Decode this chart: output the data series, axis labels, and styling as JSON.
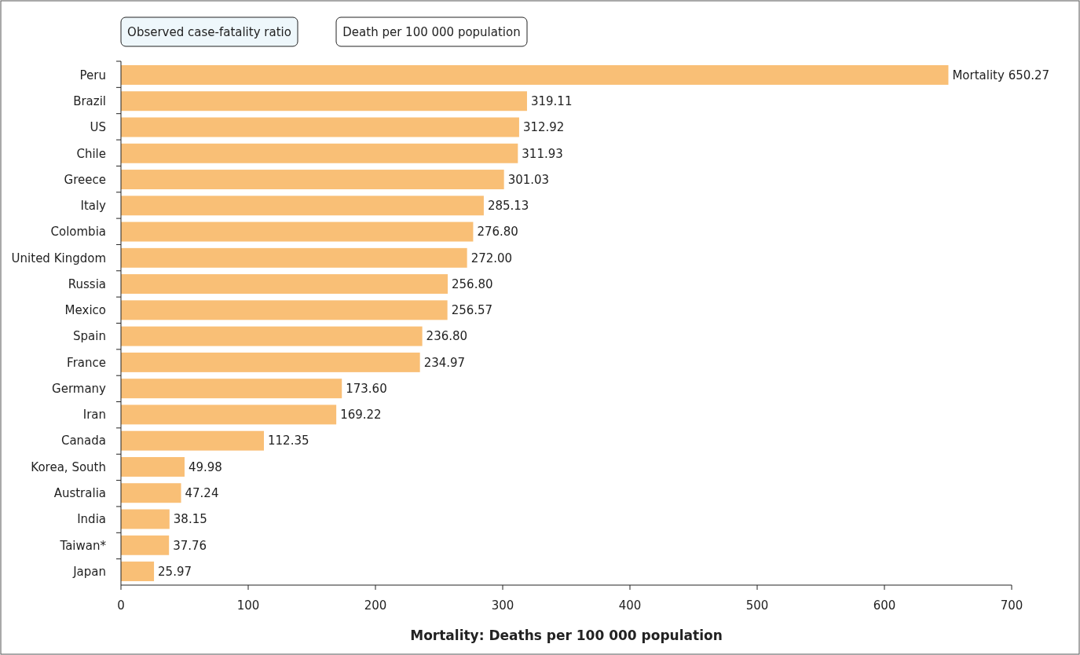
{
  "chart_data": {
    "type": "bar",
    "orientation": "horizontal",
    "xlabel": "Mortality: Deaths per 100 000 population",
    "annotations": [
      "Observed case-fatality ratio",
      "Death per 100 000 population"
    ],
    "categories": [
      "Peru",
      "Brazil",
      "US",
      "Chile",
      "Greece",
      "Italy",
      "Colombia",
      "United Kingdom",
      "Russia",
      "Mexico",
      "Spain",
      "France",
      "Germany",
      "Iran",
      "Canada",
      "Korea, South",
      "Australia",
      "India",
      "Taiwan*",
      "Japan"
    ],
    "values": [
      650.27,
      319.11,
      312.92,
      311.93,
      301.03,
      285.13,
      276.8,
      272.0,
      256.8,
      256.57,
      236.8,
      234.97,
      173.6,
      169.22,
      112.35,
      49.98,
      47.24,
      38.15,
      37.76,
      25.97
    ],
    "value_labels": [
      "Mortality 650.27",
      "319.11",
      "312.92",
      "311.93",
      "301.03",
      "285.13",
      "276.80",
      "272.00",
      "256.80",
      "256.57",
      "236.80",
      "234.97",
      "173.60",
      "169.22",
      "112.35",
      "49.98",
      "47.24",
      "38.15",
      "37.76",
      "25.97"
    ],
    "color": "#f9bf76",
    "xlim": [
      0,
      700
    ],
    "xticks": [
      0,
      100,
      200,
      300,
      400,
      500,
      600,
      700
    ],
    "grid": false
  }
}
